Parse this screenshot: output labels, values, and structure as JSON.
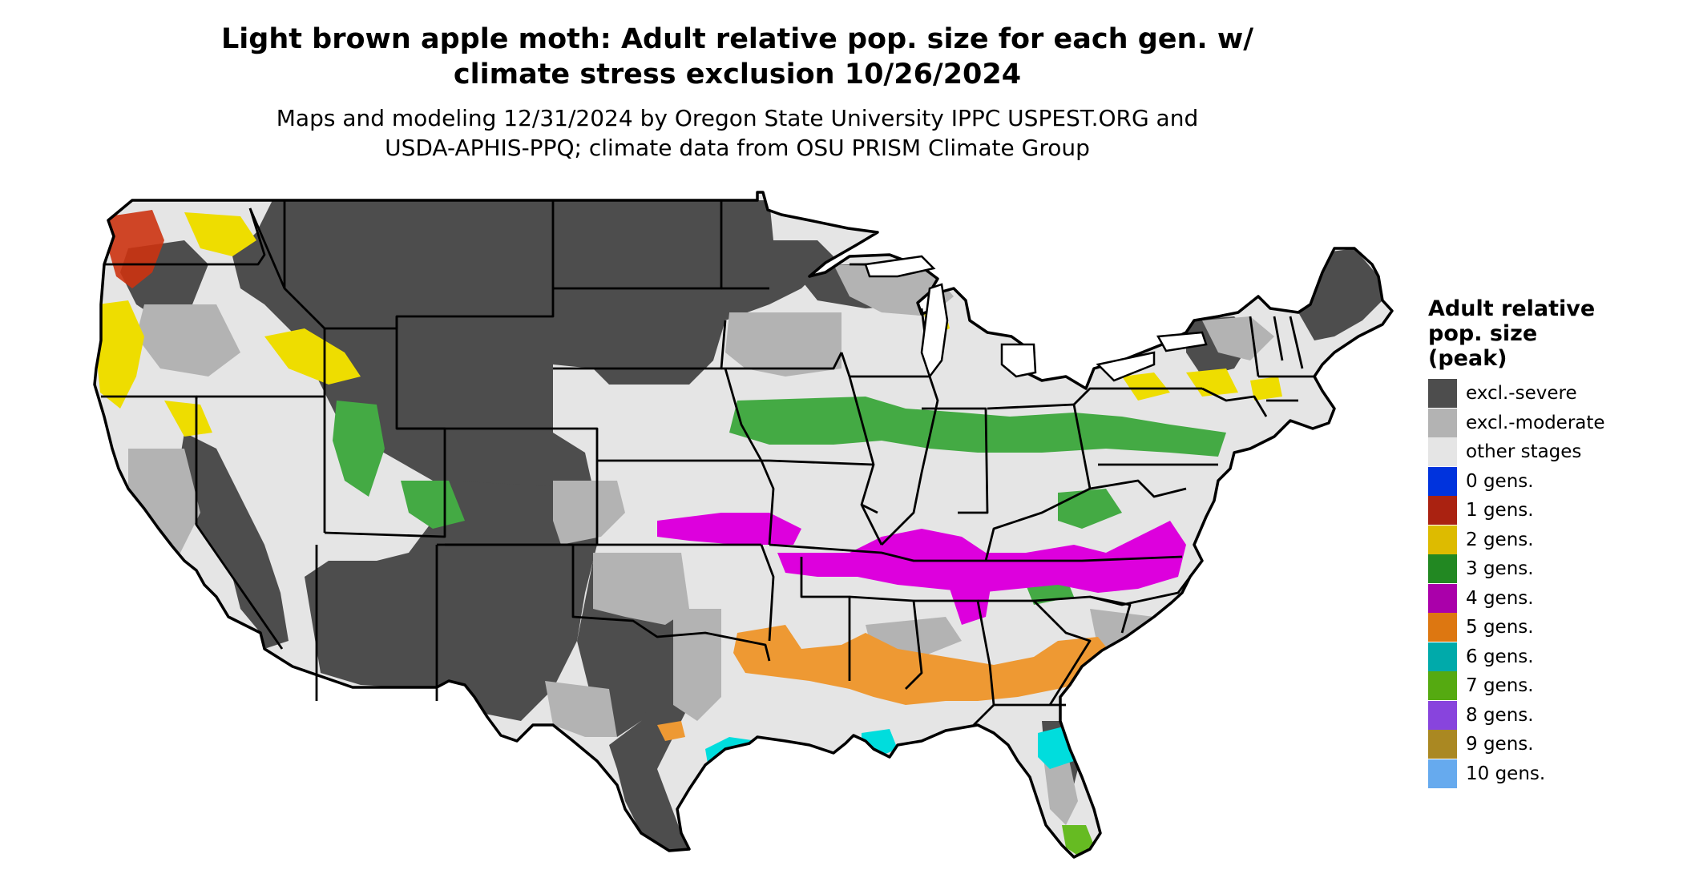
{
  "header": {
    "title_line1": "Light brown apple moth: Adult relative pop. size for each gen. w/",
    "title_line2": "climate stress exclusion 10/26/2024",
    "subtitle_line1": "Maps and modeling 12/31/2024 by Oregon State University IPPC USPEST.ORG and",
    "subtitle_line2": "USDA-APHIS-PPQ; climate data from OSU PRISM Climate Group"
  },
  "legend": {
    "title_line1": "Adult relative",
    "title_line2": "pop. size",
    "title_line3": "(peak)",
    "items": [
      {
        "label": "excl.-severe",
        "color": "#4d4d4d"
      },
      {
        "label": "excl.-moderate",
        "color": "#b3b3b3"
      },
      {
        "label": "other stages",
        "color": "#e5e5e5"
      },
      {
        "label": "0 gens.",
        "color": "#0033dd"
      },
      {
        "label": "1 gens.",
        "color": "#aa2211"
      },
      {
        "label": "2 gens.",
        "color": "#ddbb00"
      },
      {
        "label": "3 gens.",
        "color": "#228822"
      },
      {
        "label": "4 gens.",
        "color": "#aa00aa"
      },
      {
        "label": "5 gens.",
        "color": "#dd7711"
      },
      {
        "label": "6 gens.",
        "color": "#00aaaa"
      },
      {
        "label": "7 gens.",
        "color": "#55aa11"
      },
      {
        "label": "8 gens.",
        "color": "#8844dd"
      },
      {
        "label": "9 gens.",
        "color": "#aa8822"
      },
      {
        "label": "10 gens.",
        "color": "#66aaee"
      }
    ]
  },
  "map": {
    "colors": {
      "severe": "#4d4d4d",
      "moderate": "#b3b3b3",
      "other": "#e5e5e5",
      "gen1": "#cc3311",
      "gen2": "#eedd00",
      "gen3": "#44aa44",
      "gen4": "#dd00dd",
      "gen5": "#ee9933",
      "gen6": "#00dddd",
      "gen7": "#66bb22"
    }
  }
}
